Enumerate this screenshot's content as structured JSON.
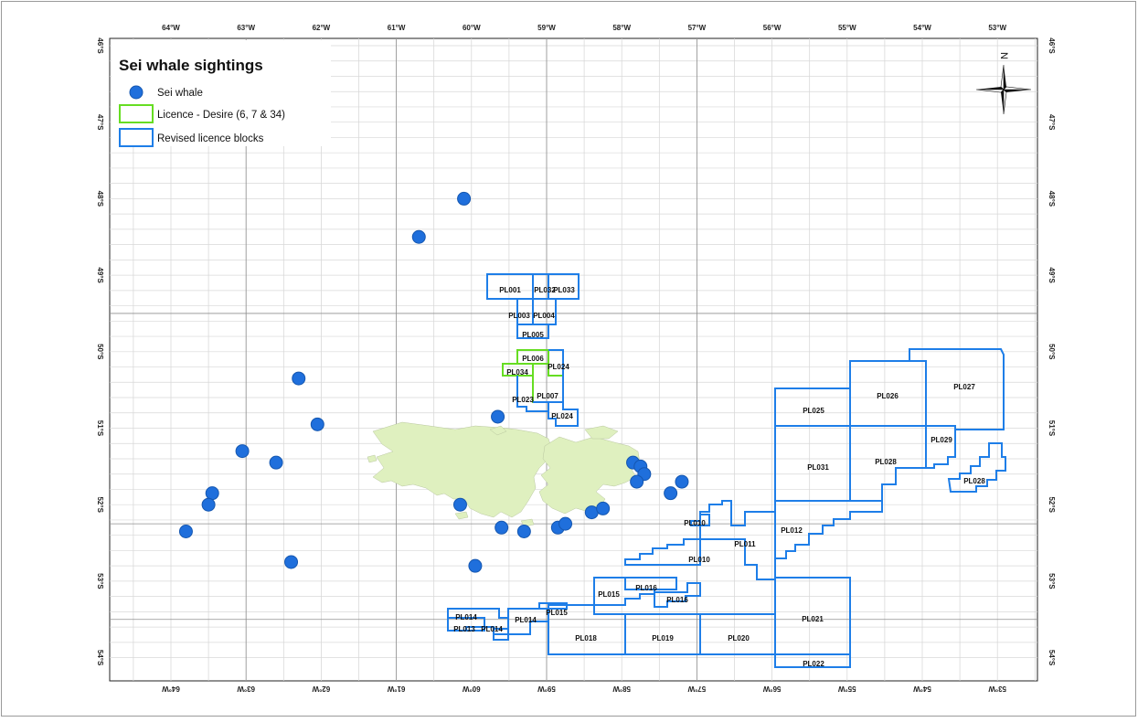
{
  "map": {
    "legend": {
      "title": "Sei whale sightings",
      "items": [
        {
          "label": "Sei whale",
          "symbol": "circle",
          "color": "#1f6fdc"
        },
        {
          "label": "Licence - Desire (6, 7 & 34)",
          "symbol": "box",
          "color": "#66dd22"
        },
        {
          "label": "Revised licence blocks",
          "symbol": "box",
          "color": "#1e7ee8"
        }
      ]
    },
    "north_arrow": "N",
    "colors": {
      "land": "#dff0bf",
      "whale": "#1f6fdc",
      "revised": "#1e7ee8",
      "desire": "#66dd22",
      "grid": "#cfcfcf",
      "major_grid": "#8a8a8a"
    },
    "lon_labels": [
      "64°W",
      "63°W",
      "62°W",
      "61°W",
      "60°W",
      "59°W",
      "58°W",
      "57°W",
      "56°W",
      "55°W",
      "54°W",
      "53°W"
    ],
    "lat_labels": [
      "46°S",
      "47°S",
      "48°S",
      "49°S",
      "50°S",
      "51°S",
      "52°S",
      "53°S",
      "54°S"
    ],
    "block_labels": [
      "PL001",
      "PL032",
      "PL033",
      "PL003",
      "PL004",
      "PL005",
      "PL006",
      "PL034",
      "PL024",
      "PL023",
      "PL007",
      "PL024",
      "PL025",
      "PL026",
      "PL027",
      "PL029",
      "PL031",
      "PL028",
      "PL028",
      "PL010",
      "PL012",
      "PL011",
      "PL010",
      "PL016",
      "PL015",
      "PL016",
      "PL014",
      "PL015",
      "PL014",
      "PL013",
      "PL014",
      "PL018",
      "PL019",
      "PL020",
      "PL021",
      "PL022"
    ],
    "sightings": [
      {
        "lon": -60.1,
        "lat": -48.0
      },
      {
        "lon": -60.7,
        "lat": -48.5
      },
      {
        "lon": -62.3,
        "lat": -50.35
      },
      {
        "lon": -62.05,
        "lat": -50.95
      },
      {
        "lon": -63.05,
        "lat": -51.3
      },
      {
        "lon": -62.6,
        "lat": -51.45
      },
      {
        "lon": -63.45,
        "lat": -51.85
      },
      {
        "lon": -63.5,
        "lat": -52.0
      },
      {
        "lon": -63.8,
        "lat": -52.35
      },
      {
        "lon": -62.4,
        "lat": -52.75
      },
      {
        "lon": -60.15,
        "lat": -52.0
      },
      {
        "lon": -59.95,
        "lat": -52.8
      },
      {
        "lon": -59.65,
        "lat": -50.85
      },
      {
        "lon": -59.6,
        "lat": -52.3
      },
      {
        "lon": -59.3,
        "lat": -52.35
      },
      {
        "lon": -58.85,
        "lat": -52.3
      },
      {
        "lon": -58.75,
        "lat": -52.25
      },
      {
        "lon": -58.4,
        "lat": -52.1
      },
      {
        "lon": -58.25,
        "lat": -52.05
      },
      {
        "lon": -57.85,
        "lat": -51.45
      },
      {
        "lon": -57.75,
        "lat": -51.5
      },
      {
        "lon": -57.7,
        "lat": -51.6
      },
      {
        "lon": -57.8,
        "lat": -51.7
      },
      {
        "lon": -57.35,
        "lat": -51.85
      },
      {
        "lon": -57.2,
        "lat": -51.7
      }
    ]
  }
}
